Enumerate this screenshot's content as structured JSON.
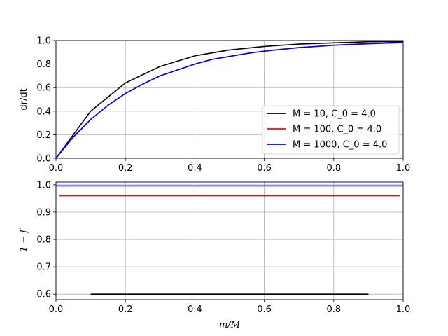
{
  "chart_data": [
    {
      "type": "line",
      "title": "",
      "xlabel": "",
      "ylabel": "dr/dt",
      "xlim": [
        0,
        1
      ],
      "ylim": [
        0,
        1
      ],
      "xticks": [
        "0.0",
        "0.2",
        "0.4",
        "0.6",
        "0.8",
        "1.0"
      ],
      "yticks": [
        "0.0",
        "0.2",
        "0.4",
        "0.6",
        "0.8",
        "1.0"
      ],
      "grid": true,
      "legend_position": "lower-right",
      "series": [
        {
          "name": "M = 10, C_0 = 4.0",
          "color": "#000000",
          "x": [
            0,
            0.1,
            0.2,
            0.3,
            0.4,
            0.5,
            0.6,
            0.7,
            0.8,
            0.9,
            1.0
          ],
          "y": [
            0,
            0.4,
            0.64,
            0.78,
            0.87,
            0.92,
            0.95,
            0.97,
            0.98,
            0.99,
            0.99
          ]
        },
        {
          "name": "M = 100, C_0 = 4.0",
          "color": "#ff0000",
          "x": [
            0,
            0.05,
            0.1,
            0.15,
            0.2,
            0.25,
            0.3,
            0.35,
            0.4,
            0.45,
            0.5,
            0.55,
            0.6,
            0.65,
            0.7,
            0.75,
            0.8,
            0.85,
            0.9,
            0.95,
            1.0
          ],
          "y": [
            0,
            0.18,
            0.33,
            0.45,
            0.55,
            0.63,
            0.7,
            0.75,
            0.8,
            0.84,
            0.865,
            0.89,
            0.91,
            0.925,
            0.94,
            0.95,
            0.96,
            0.967,
            0.973,
            0.978,
            0.982
          ]
        },
        {
          "name": "M = 1000, C_0 = 4.0",
          "color": "#0000ff",
          "x": [
            0,
            0.05,
            0.1,
            0.15,
            0.2,
            0.25,
            0.3,
            0.35,
            0.4,
            0.45,
            0.5,
            0.55,
            0.6,
            0.65,
            0.7,
            0.75,
            0.8,
            0.85,
            0.9,
            0.95,
            1.0
          ],
          "y": [
            0,
            0.18,
            0.33,
            0.45,
            0.55,
            0.63,
            0.7,
            0.75,
            0.8,
            0.84,
            0.865,
            0.89,
            0.91,
            0.925,
            0.94,
            0.95,
            0.96,
            0.967,
            0.973,
            0.978,
            0.982
          ]
        }
      ]
    },
    {
      "type": "line",
      "title": "",
      "xlabel": "m/M",
      "ylabel": "1 − f",
      "xlim": [
        0,
        1
      ],
      "ylim": [
        0.58,
        1.01
      ],
      "xticks": [
        "0.0",
        "0.2",
        "0.4",
        "0.6",
        "0.8",
        "1.0"
      ],
      "yticks": [
        "0.6",
        "0.7",
        "0.8",
        "0.9",
        "1.0"
      ],
      "grid": true,
      "series": [
        {
          "color": "#000000",
          "x": [
            0.1,
            0.9
          ],
          "y": [
            0.6,
            0.6
          ]
        },
        {
          "color": "#ff0000",
          "x": [
            0.01,
            0.99
          ],
          "y": [
            0.96,
            0.96
          ]
        },
        {
          "color": "#0000ff",
          "x": [
            0.001,
            0.999
          ],
          "y": [
            0.996,
            0.996
          ]
        }
      ]
    }
  ]
}
